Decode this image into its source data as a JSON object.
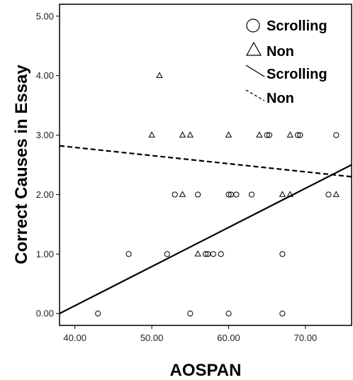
{
  "chart_data": {
    "type": "scatter",
    "xlabel": "AOSPAN",
    "ylabel": "Correct Causes in Essay",
    "xlim": [
      38,
      76
    ],
    "ylim": [
      -0.2,
      5.2
    ],
    "xticks": [
      40,
      50,
      60,
      70
    ],
    "xtick_labels": [
      "40.00",
      "50.00",
      "60.00",
      "70.00"
    ],
    "yticks": [
      0,
      1,
      2,
      3,
      4,
      5
    ],
    "ytick_labels": [
      "0.00",
      "1.00",
      "2.00",
      "3.00",
      "4.00",
      "5.00"
    ],
    "grid": false,
    "legend_position": "top-right",
    "series": [
      {
        "name": "Scrolling",
        "marker": "circle",
        "points": [
          [
            43,
            0
          ],
          [
            55,
            0
          ],
          [
            60,
            0
          ],
          [
            67,
            0
          ],
          [
            47,
            1
          ],
          [
            52,
            1
          ],
          [
            57,
            1
          ],
          [
            57.3,
            1
          ],
          [
            58,
            1
          ],
          [
            59,
            1
          ],
          [
            67,
            1
          ],
          [
            53,
            2
          ],
          [
            56,
            2
          ],
          [
            60,
            2
          ],
          [
            60.3,
            2
          ],
          [
            61,
            2
          ],
          [
            63,
            2
          ],
          [
            73,
            2
          ],
          [
            65,
            3
          ],
          [
            65.3,
            3
          ],
          [
            69,
            3
          ],
          [
            69.3,
            3
          ],
          [
            74,
            3
          ]
        ]
      },
      {
        "name": "Non",
        "marker": "triangle",
        "points": [
          [
            51,
            4
          ],
          [
            50,
            3
          ],
          [
            54,
            3
          ],
          [
            55,
            3
          ],
          [
            60,
            3
          ],
          [
            64,
            3
          ],
          [
            68,
            3
          ],
          [
            54,
            2
          ],
          [
            67,
            2
          ],
          [
            68,
            2
          ],
          [
            74,
            2
          ],
          [
            56,
            1
          ]
        ]
      }
    ],
    "fit_lines": [
      {
        "name": "Scrolling",
        "style": "solid",
        "x": [
          38.0,
          76.0
        ],
        "y": [
          0.0,
          2.5
        ]
      },
      {
        "name": "Non",
        "style": "dashed",
        "x": [
          38.0,
          76.0
        ],
        "y": [
          2.82,
          2.3
        ]
      }
    ],
    "legend": [
      {
        "label": "Scrolling",
        "symbol": "circle"
      },
      {
        "label": "Non",
        "symbol": "triangle"
      },
      {
        "label": "Scrolling",
        "symbol": "solid-line"
      },
      {
        "label": "Non",
        "symbol": "dashed-line"
      }
    ]
  }
}
